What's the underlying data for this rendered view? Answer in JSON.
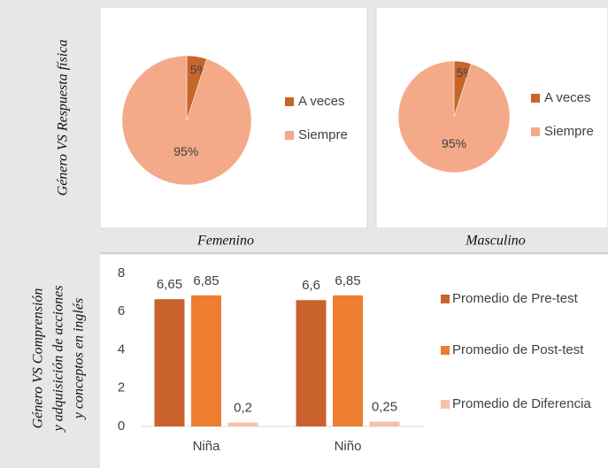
{
  "row_labels": [
    [
      "Género VS Respuesta física"
    ],
    [
      "Género VS Comprensión",
      "y adquisición de acciones",
      "y conceptos en inglés"
    ]
  ],
  "column_labels": [
    "Femenino",
    "Masculino"
  ],
  "chart_data": [
    {
      "type": "pie",
      "categories": [
        "A veces",
        "Siempre"
      ],
      "values": [
        5,
        95
      ],
      "value_labels": [
        "5%",
        "95%"
      ],
      "colors": [
        "#c8652a",
        "#f4a989"
      ]
    },
    {
      "type": "pie",
      "categories": [
        "A veces",
        "Siempre"
      ],
      "values": [
        5,
        95
      ],
      "value_labels": [
        "5%",
        "95%"
      ],
      "colors": [
        "#c8652a",
        "#f4a989"
      ]
    },
    {
      "type": "bar",
      "categories": [
        "Niña",
        "Niño"
      ],
      "series": [
        {
          "name": "Promedio de Pre-test",
          "color": "#c9622c",
          "values": [
            6.65,
            6.6
          ],
          "value_labels": [
            "6,65",
            "6,6"
          ]
        },
        {
          "name": "Promedio de Post-test",
          "color": "#ed7d31",
          "values": [
            6.85,
            6.85
          ],
          "value_labels": [
            "6,85",
            "6,85"
          ]
        },
        {
          "name": "Promedio de Diferencia",
          "color": "#f6c3a8",
          "values": [
            0.2,
            0.25
          ],
          "value_labels": [
            "0,2",
            "0,25"
          ]
        }
      ],
      "ylim": [
        0,
        8
      ],
      "yticks": [
        0,
        2,
        4,
        6,
        8
      ]
    }
  ]
}
